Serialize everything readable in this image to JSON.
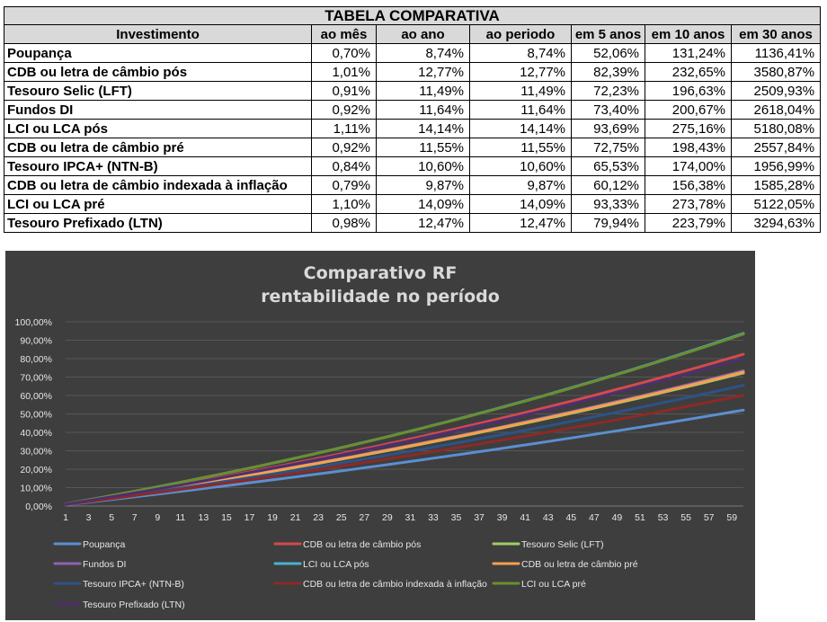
{
  "table": {
    "title": "TABELA COMPARATIVA",
    "headers": [
      "Investimento",
      "ao mês",
      "ao ano",
      "ao periodo",
      "em 5 anos",
      "em 10 anos",
      "em 30 anos"
    ],
    "rows": [
      [
        "Poupança",
        "0,70%",
        "8,74%",
        "8,74%",
        "52,06%",
        "131,24%",
        "1136,41%"
      ],
      [
        "CDB ou letra de câmbio pós",
        "1,01%",
        "12,77%",
        "12,77%",
        "82,39%",
        "232,65%",
        "3580,87%"
      ],
      [
        "Tesouro Selic (LFT)",
        "0,91%",
        "11,49%",
        "11,49%",
        "72,23%",
        "196,63%",
        "2509,93%"
      ],
      [
        "Fundos DI",
        "0,92%",
        "11,64%",
        "11,64%",
        "73,40%",
        "200,67%",
        "2618,04%"
      ],
      [
        "LCI ou LCA pós",
        "1,11%",
        "14,14%",
        "14,14%",
        "93,69%",
        "275,16%",
        "5180,08%"
      ],
      [
        "CDB ou letra de câmbio pré",
        "0,92%",
        "11,55%",
        "11,55%",
        "72,75%",
        "198,43%",
        "2557,84%"
      ],
      [
        "Tesouro IPCA+ (NTN-B)",
        "0,84%",
        "10,60%",
        "10,60%",
        "65,53%",
        "174,00%",
        "1956,99%"
      ],
      [
        "CDB ou letra de câmbio indexada à inflação",
        "0,79%",
        "9,87%",
        "9,87%",
        "60,12%",
        "156,38%",
        "1585,28%"
      ],
      [
        "LCI ou LCA pré",
        "1,10%",
        "14,09%",
        "14,09%",
        "93,33%",
        "273,78%",
        "5122,05%"
      ],
      [
        "Tesouro Prefixado (LTN)",
        "0,98%",
        "12,47%",
        "12,47%",
        "79,94%",
        "223,79%",
        "3294,63%"
      ]
    ]
  },
  "chart_data": {
    "type": "line",
    "title": "Comparativo RF",
    "subtitle": "rentabilidade no período",
    "xlabel": "",
    "ylabel": "",
    "x_range": [
      1,
      60
    ],
    "x_ticks": [
      1,
      3,
      5,
      7,
      9,
      11,
      13,
      15,
      17,
      19,
      21,
      23,
      25,
      27,
      29,
      31,
      33,
      35,
      37,
      39,
      41,
      43,
      45,
      47,
      49,
      51,
      53,
      55,
      57,
      59
    ],
    "y_ticks": [
      "0,00%",
      "10,00%",
      "20,00%",
      "30,00%",
      "40,00%",
      "50,00%",
      "60,00%",
      "70,00%",
      "80,00%",
      "90,00%",
      "100,00%"
    ],
    "ylim": [
      0,
      100
    ],
    "grid": "horizontal",
    "legend_position": "bottom",
    "series": [
      {
        "name": "Poupança",
        "color": "#5b8fd1",
        "monthly_rate_percent": 0.7,
        "value_at_60_percent": 52.06
      },
      {
        "name": "CDB ou letra de câmbio pós",
        "color": "#d24a4e",
        "monthly_rate_percent": 1.01,
        "value_at_60_percent": 82.39
      },
      {
        "name": "Tesouro Selic (LFT)",
        "color": "#9fce63",
        "monthly_rate_percent": 0.91,
        "value_at_60_percent": 72.23
      },
      {
        "name": "Fundos DI",
        "color": "#8d63b0",
        "monthly_rate_percent": 0.92,
        "value_at_60_percent": 73.4
      },
      {
        "name": "LCI ou LCA pós",
        "color": "#47b3cd",
        "monthly_rate_percent": 1.11,
        "value_at_60_percent": 93.69
      },
      {
        "name": "CDB ou letra de câmbio pré",
        "color": "#f5a04f",
        "monthly_rate_percent": 0.92,
        "value_at_60_percent": 72.75
      },
      {
        "name": "Tesouro IPCA+ (NTN-B)",
        "color": "#2d5386",
        "monthly_rate_percent": 0.84,
        "value_at_60_percent": 65.53
      },
      {
        "name": "CDB ou letra de câmbio indexada à inflação",
        "color": "#8c2a27",
        "monthly_rate_percent": 0.79,
        "value_at_60_percent": 60.12
      },
      {
        "name": "LCI ou LCA pré",
        "color": "#6b8e2f",
        "monthly_rate_percent": 1.1,
        "value_at_60_percent": 93.33
      },
      {
        "name": "Tesouro Prefixado (LTN)",
        "color": "#4e2f6e",
        "monthly_rate_percent": 0.98,
        "value_at_60_percent": 79.94
      }
    ]
  }
}
